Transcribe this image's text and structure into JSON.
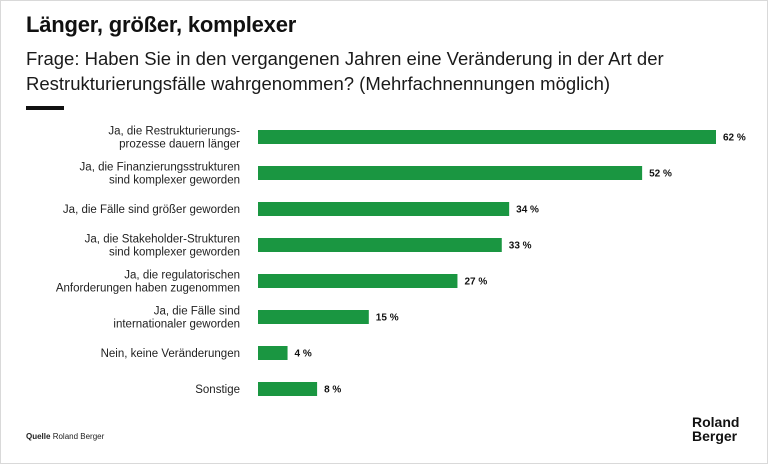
{
  "title": "Länger, größer, komplexer",
  "subtitle": "Frage: Haben Sie in den vergangenen Jahren eine Veränderung in der Art der Restrukturierungsfälle wahrgenommen? (Mehrfachnennungen möglich)",
  "source_label": "Quelle",
  "source_value": "Roland Berger",
  "logo": {
    "line1": "Roland",
    "line2": "Berger"
  },
  "colors": {
    "bar": "#1a9641",
    "text": "#111111",
    "frame": "#d9d9d9"
  },
  "chart_data": {
    "type": "bar",
    "orientation": "horizontal",
    "unit": "%",
    "categories": [
      [
        "Ja, die Restrukturierungs-",
        "prozesse dauern länger"
      ],
      [
        "Ja, die Finanzierungsstrukturen",
        "sind komplexer geworden"
      ],
      [
        "Ja, die Fälle sind größer geworden"
      ],
      [
        "Ja, die Stakeholder-Strukturen",
        "sind komplexer geworden"
      ],
      [
        "Ja, die regulatorischen",
        "Anforderungen haben zugenommen"
      ],
      [
        "Ja, die Fälle sind",
        "internationaler geworden"
      ],
      [
        "Nein, keine Veränderungen"
      ],
      [
        "Sonstige"
      ]
    ],
    "values": [
      62,
      52,
      34,
      33,
      27,
      15,
      4,
      8
    ],
    "value_labels": [
      "62 %",
      "52 %",
      "34 %",
      "33 %",
      "27 %",
      "15 %",
      "4 %",
      "8 %"
    ],
    "xlim": [
      0,
      62
    ],
    "grid": false
  }
}
